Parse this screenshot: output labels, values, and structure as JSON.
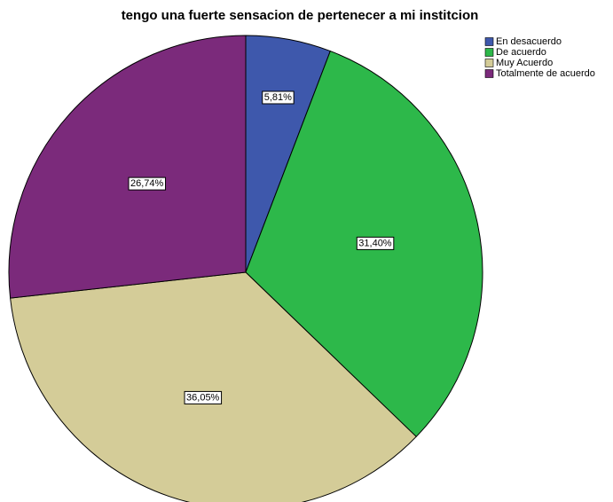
{
  "chart_data": {
    "type": "pie",
    "title": "tengo una fuerte sensacion de pertenecer a mi institcion",
    "categories": [
      "En desacuerdo",
      "De acuerdo",
      "Muy Acuerdo",
      "Totalmente de acuerdo"
    ],
    "values": [
      5.81,
      31.4,
      36.05,
      26.74
    ],
    "value_labels": [
      "5,81%",
      "31,40%",
      "36,05%",
      "26,74%"
    ],
    "colors": [
      "#3e58ac",
      "#2db84a",
      "#d4cc98",
      "#7b2a7b"
    ],
    "legend": "top-right"
  }
}
